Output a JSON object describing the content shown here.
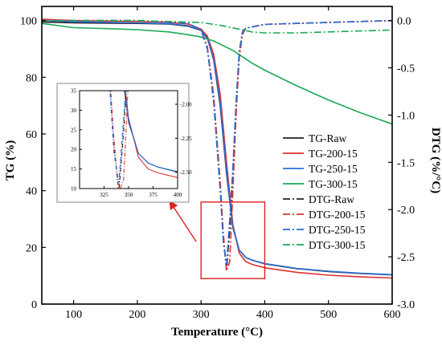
{
  "chart_data": {
    "type": "line",
    "xlabel": "Temperature (°C)",
    "ylabel_left": "TG (%)",
    "ylabel_right": "DTG (%/°C)",
    "xlim": [
      50,
      600
    ],
    "ylim_left": [
      0,
      105
    ],
    "ylim_right": [
      -3.0,
      0.15
    ],
    "x_ticks": [
      100,
      200,
      300,
      400,
      500,
      600
    ],
    "y_ticks_left": [
      0,
      20,
      40,
      60,
      80,
      100
    ],
    "y_ticks_right": [
      "0.0",
      "-0.5",
      "-1.0",
      "-1.5",
      "-2.0",
      "-2.5",
      "-3.0"
    ],
    "legend_position": "right",
    "series": [
      {
        "name": "TG-Raw",
        "axis": "left",
        "color": "#222222",
        "dash": "solid",
        "x": [
          50,
          100,
          200,
          250,
          280,
          300,
          310,
          320,
          330,
          340,
          350,
          360,
          370,
          380,
          400,
          450,
          500,
          550,
          600
        ],
        "y": [
          99.5,
          99.2,
          99.0,
          98.8,
          98.0,
          96.5,
          94.0,
          86.0,
          70.0,
          46.0,
          27.0,
          19.0,
          16.5,
          15.5,
          14.2,
          12.5,
          11.5,
          10.8,
          10.3
        ]
      },
      {
        "name": "TG-200-15",
        "axis": "left",
        "color": "#e03030",
        "dash": "solid",
        "x": [
          50,
          100,
          200,
          250,
          280,
          300,
          310,
          320,
          330,
          340,
          350,
          360,
          370,
          380,
          400,
          450,
          500,
          550,
          600
        ],
        "y": [
          100.5,
          100.0,
          99.7,
          99.4,
          98.8,
          97.0,
          94.5,
          88.0,
          74.0,
          50.0,
          28.0,
          18.0,
          15.0,
          14.0,
          12.8,
          11.2,
          10.2,
          9.6,
          9.2
        ]
      },
      {
        "name": "TG-250-15",
        "axis": "left",
        "color": "#2a6fd6",
        "dash": "solid",
        "x": [
          50,
          100,
          200,
          250,
          280,
          300,
          310,
          320,
          330,
          340,
          350,
          360,
          370,
          380,
          400,
          450,
          500,
          550,
          600
        ],
        "y": [
          100.0,
          99.6,
          99.2,
          98.9,
          98.2,
          96.5,
          93.5,
          86.5,
          71.0,
          47.0,
          27.5,
          19.0,
          16.5,
          15.5,
          14.3,
          12.6,
          11.6,
          10.9,
          10.4
        ]
      },
      {
        "name": "TG-300-15",
        "axis": "left",
        "color": "#1aaa55",
        "dash": "solid",
        "x": [
          50,
          100,
          150,
          200,
          250,
          280,
          300,
          320,
          350,
          380,
          400,
          450,
          500,
          550,
          600
        ],
        "y": [
          99.0,
          97.5,
          97.2,
          96.8,
          96.0,
          95.0,
          94.2,
          92.8,
          89.5,
          85.0,
          82.5,
          77.0,
          72.0,
          67.5,
          63.5
        ]
      },
      {
        "name": "DTG-Raw",
        "axis": "right",
        "color": "#222222",
        "dash": "dashdot",
        "x": [
          50,
          200,
          280,
          300,
          310,
          320,
          330,
          335,
          340,
          345,
          350,
          355,
          360,
          365,
          370,
          400,
          500,
          600
        ],
        "y": [
          0.0,
          0.0,
          -0.03,
          -0.1,
          -0.3,
          -0.85,
          -1.75,
          -2.3,
          -2.65,
          -2.2,
          -1.6,
          -0.9,
          -0.35,
          -0.12,
          -0.08,
          -0.04,
          -0.02,
          0.0
        ]
      },
      {
        "name": "DTG-200-15",
        "axis": "right",
        "color": "#e03030",
        "dash": "dashdot",
        "x": [
          50,
          200,
          280,
          300,
          310,
          320,
          330,
          335,
          340,
          345,
          350,
          355,
          360,
          365,
          370,
          400,
          500,
          600
        ],
        "y": [
          0.0,
          0.0,
          -0.03,
          -0.1,
          -0.28,
          -0.8,
          -1.7,
          -2.25,
          -2.65,
          -2.55,
          -1.8,
          -1.0,
          -0.4,
          -0.15,
          -0.08,
          -0.04,
          -0.02,
          0.0
        ]
      },
      {
        "name": "DTG-250-15",
        "axis": "right",
        "color": "#2a6fd6",
        "dash": "dashdot",
        "x": [
          50,
          200,
          280,
          300,
          310,
          320,
          330,
          335,
          340,
          345,
          350,
          355,
          360,
          365,
          370,
          400,
          500,
          600
        ],
        "y": [
          0.0,
          0.0,
          -0.03,
          -0.1,
          -0.3,
          -0.88,
          -1.8,
          -2.35,
          -2.58,
          -2.1,
          -1.55,
          -0.85,
          -0.32,
          -0.12,
          -0.08,
          -0.04,
          -0.02,
          0.0
        ]
      },
      {
        "name": "DTG-300-15",
        "axis": "right",
        "color": "#1aaa55",
        "dash": "dashdot",
        "x": [
          50,
          100,
          200,
          250,
          300,
          330,
          360,
          380,
          400,
          450,
          500,
          550,
          600
        ],
        "y": [
          0.0,
          0.0,
          0.0,
          -0.01,
          -0.02,
          -0.05,
          -0.09,
          -0.12,
          -0.13,
          -0.13,
          -0.12,
          -0.11,
          -0.1
        ]
      }
    ],
    "highlight_box": {
      "x_range": [
        300,
        400
      ],
      "y_range_left": [
        9,
        36
      ]
    },
    "inset": {
      "xlim": [
        300,
        400
      ],
      "ylim_left": [
        10,
        35
      ],
      "ylim_right": [
        -2.62,
        -1.9
      ],
      "x_ticks": [
        325,
        350,
        375,
        400
      ],
      "y_ticks_left": [
        10,
        15,
        20,
        25,
        30,
        35
      ],
      "y_ticks_right": [
        "-2.00",
        "-2.25",
        "-2.50"
      ]
    }
  }
}
